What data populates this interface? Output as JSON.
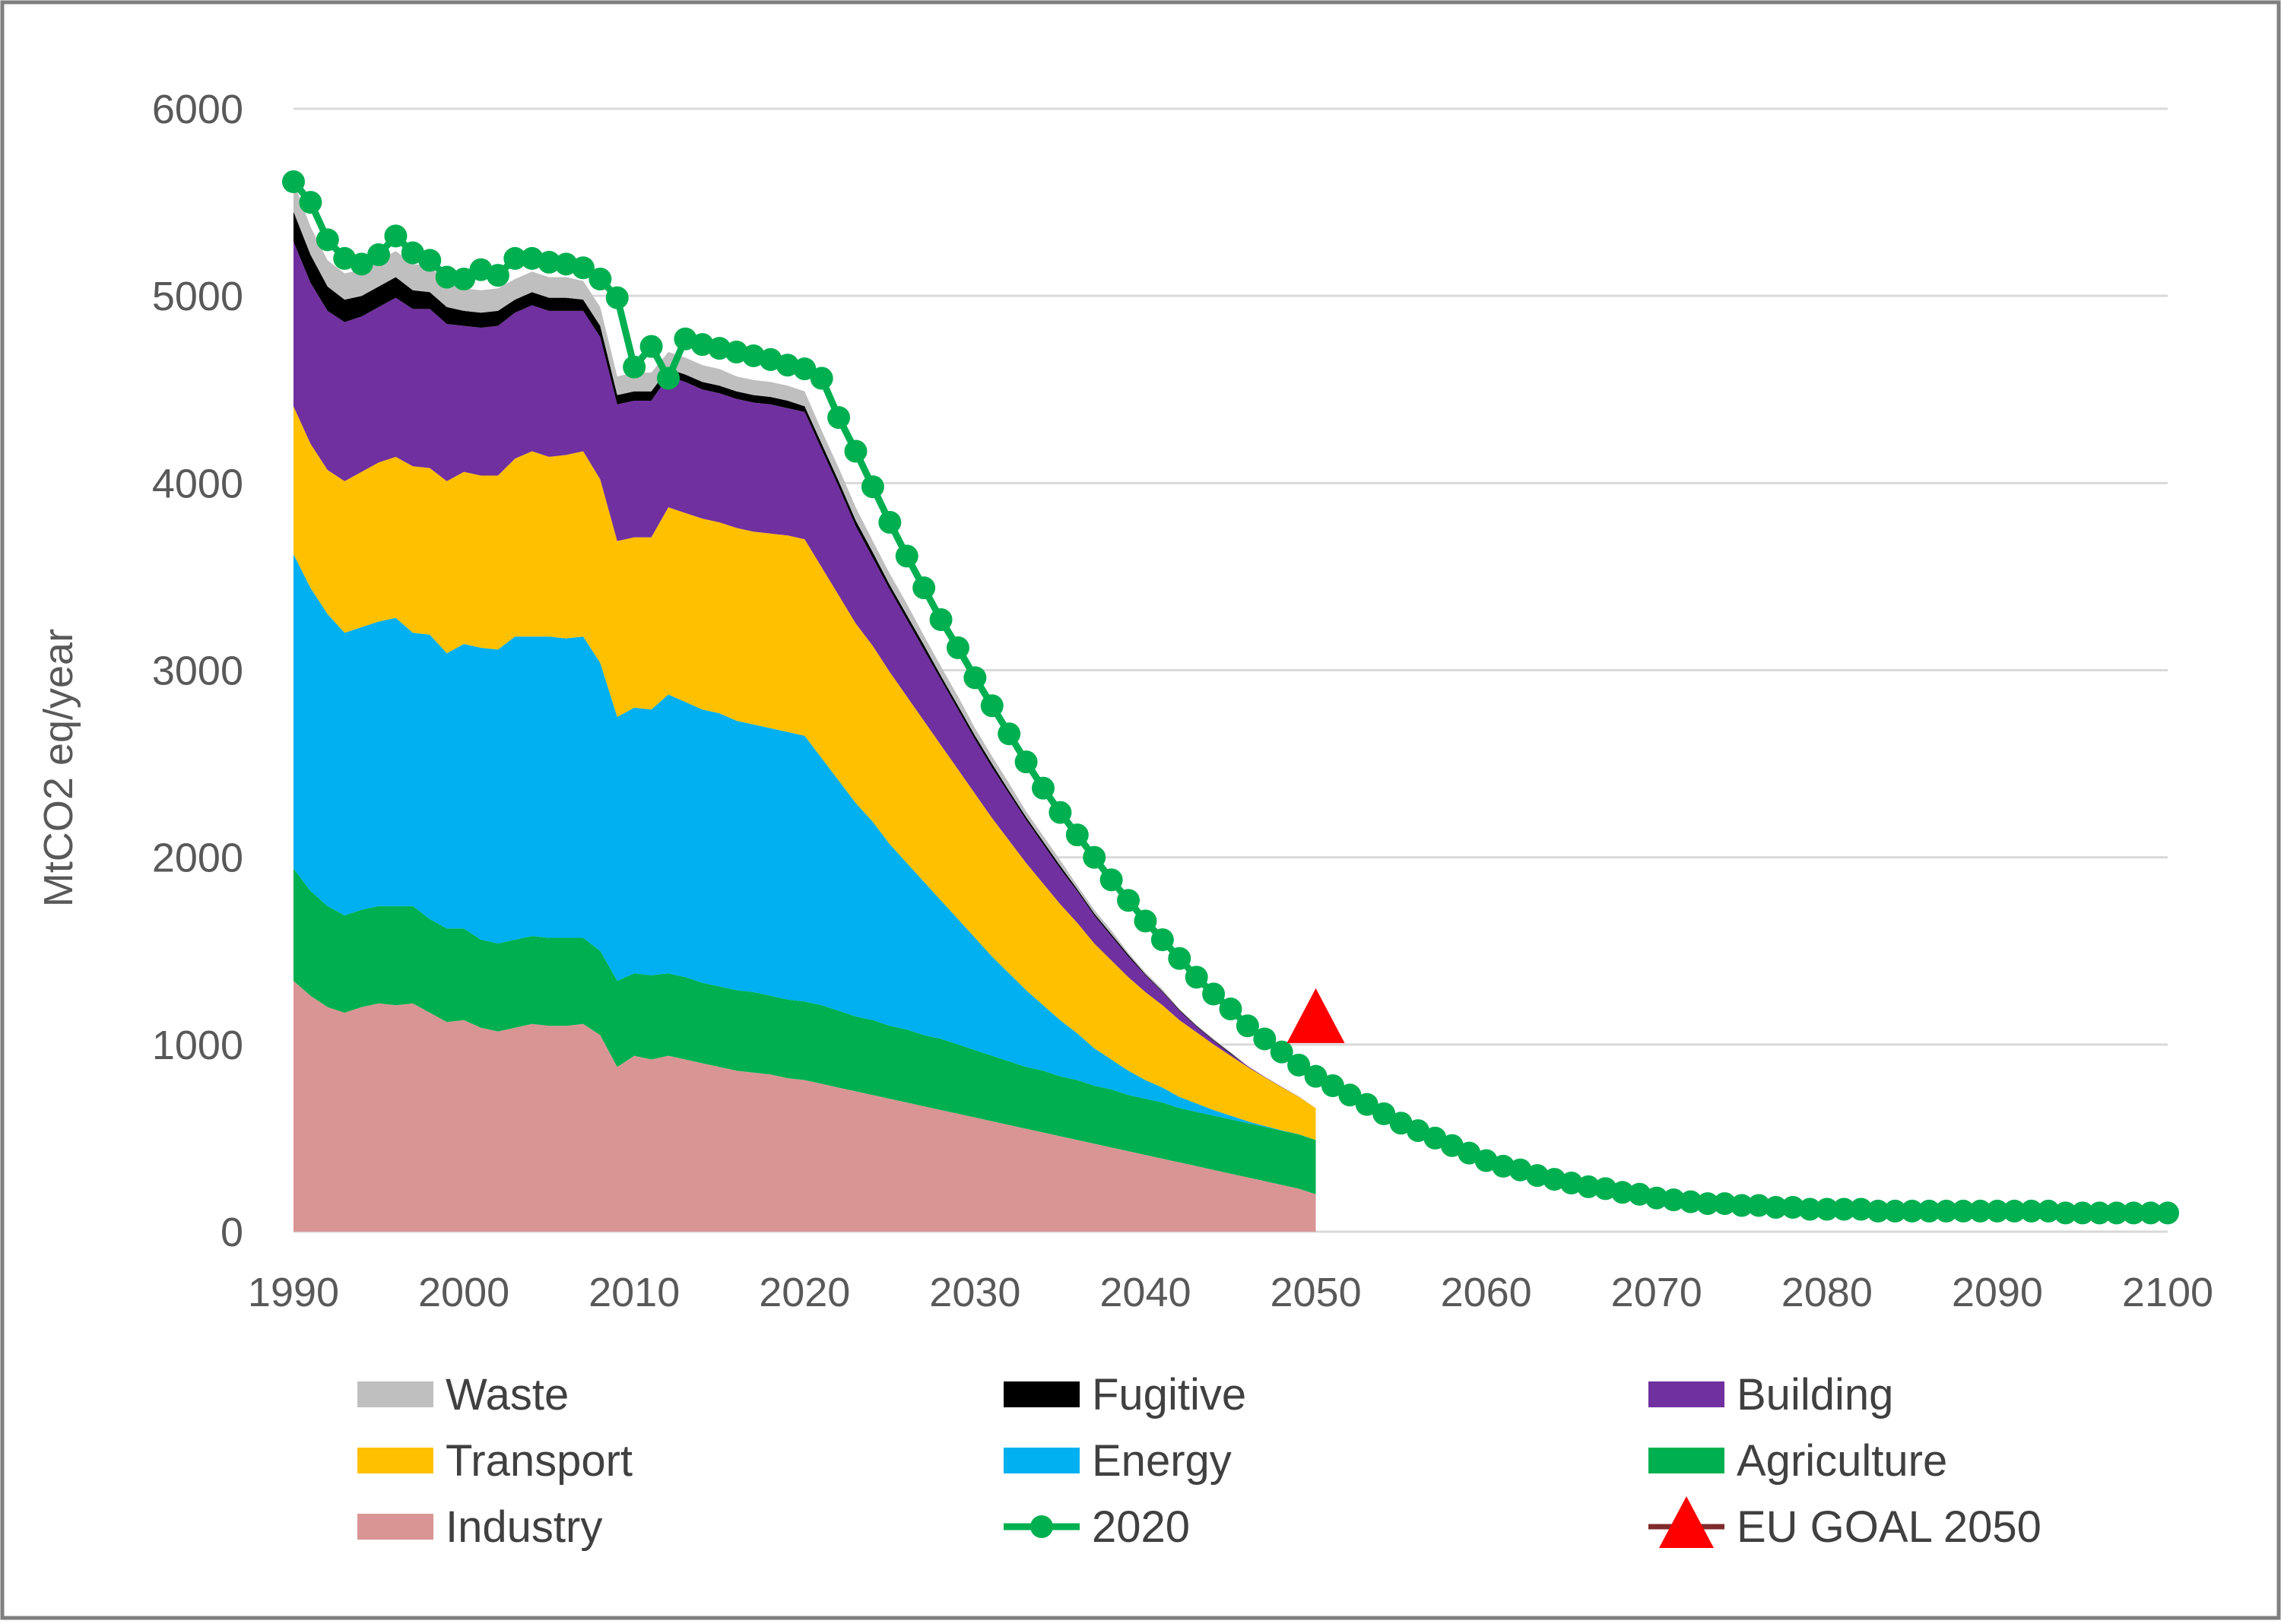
{
  "chart_data": {
    "type": "area",
    "ylabel": "MtCO2 eq/year",
    "xlabel": "",
    "title": "",
    "xlim": [
      1990,
      2100
    ],
    "ylim": [
      0,
      6000
    ],
    "y_ticks": [
      0,
      1000,
      2000,
      3000,
      4000,
      5000,
      6000
    ],
    "x_ticks": [
      1990,
      2000,
      2010,
      2020,
      2030,
      2040,
      2050,
      2060,
      2070,
      2080,
      2090,
      2100
    ],
    "grid": true,
    "legend_position": "bottom",
    "colors": {
      "Industry": "#d99594",
      "Agriculture": "#00b050",
      "Energy": "#00b0f0",
      "Transport": "#ffc000",
      "Building": "#7030a0",
      "Fugitive": "#000000",
      "Waste": "#bfbfbf",
      "2020": "#00b050",
      "EU GOAL 2050": "#ff0000",
      "EU GOAL 2050 line": "#7f2b2b",
      "grid": "#d9d9d9",
      "frame": "#7f7f7f"
    },
    "x": [
      1990,
      1991,
      1992,
      1993,
      1994,
      1995,
      1996,
      1997,
      1998,
      1999,
      2000,
      2001,
      2002,
      2003,
      2004,
      2005,
      2006,
      2007,
      2008,
      2009,
      2010,
      2011,
      2012,
      2013,
      2014,
      2015,
      2016,
      2017,
      2018,
      2019,
      2020,
      2021,
      2022,
      2023,
      2024,
      2025,
      2026,
      2027,
      2028,
      2029,
      2030,
      2031,
      2032,
      2033,
      2034,
      2035,
      2036,
      2037,
      2038,
      2039,
      2040,
      2041,
      2042,
      2043,
      2044,
      2045,
      2046,
      2047,
      2048,
      2049,
      2050
    ],
    "series": [
      {
        "name": "Industry",
        "values": [
          1340,
          1260,
          1200,
          1170,
          1200,
          1220,
          1210,
          1220,
          1170,
          1120,
          1130,
          1090,
          1070,
          1090,
          1110,
          1100,
          1100,
          1110,
          1050,
          880,
          940,
          920,
          940,
          920,
          900,
          880,
          860,
          850,
          840,
          820,
          810,
          790,
          770,
          750,
          730,
          710,
          690,
          670,
          650,
          630,
          610,
          590,
          570,
          550,
          530,
          510,
          490,
          470,
          450,
          430,
          410,
          390,
          370,
          350,
          330,
          310,
          290,
          270,
          250,
          230,
          200
        ]
      },
      {
        "name": "Agriculture",
        "values": [
          600,
          560,
          540,
          520,
          520,
          520,
          530,
          520,
          500,
          500,
          490,
          470,
          470,
          470,
          470,
          470,
          470,
          460,
          450,
          460,
          440,
          450,
          440,
          440,
          430,
          430,
          430,
          430,
          420,
          420,
          420,
          420,
          410,
          400,
          400,
          390,
          390,
          380,
          380,
          370,
          360,
          350,
          340,
          330,
          330,
          320,
          320,
          310,
          310,
          300,
          300,
          300,
          290,
          290,
          290,
          290,
          290,
          290,
          290,
          290,
          290
        ]
      },
      {
        "name": "Energy",
        "values": [
          1680,
          1620,
          1560,
          1510,
          1510,
          1520,
          1540,
          1460,
          1520,
          1470,
          1520,
          1560,
          1570,
          1620,
          1600,
          1610,
          1600,
          1610,
          1540,
          1410,
          1420,
          1420,
          1490,
          1470,
          1460,
          1460,
          1440,
          1430,
          1430,
          1430,
          1420,
          1320,
          1230,
          1140,
          1060,
          970,
          890,
          820,
          740,
          670,
          600,
          530,
          470,
          410,
          350,
          300,
          250,
          200,
          160,
          130,
          100,
          80,
          60,
          45,
          30,
          20,
          10,
          5,
          2,
          1,
          0
        ]
      },
      {
        "name": "Transport",
        "values": [
          790,
          770,
          770,
          810,
          830,
          850,
          860,
          890,
          890,
          920,
          920,
          920,
          930,
          950,
          990,
          960,
          980,
          990,
          980,
          940,
          910,
          920,
          1000,
          1010,
          1020,
          1020,
          1030,
          1030,
          1040,
          1050,
          1050,
          1020,
          990,
          960,
          940,
          920,
          890,
          860,
          830,
          800,
          770,
          740,
          710,
          680,
          650,
          620,
          590,
          560,
          530,
          500,
          470,
          440,
          410,
          380,
          350,
          320,
          290,
          260,
          230,
          200,
          170
        ]
      },
      {
        "name": "Building",
        "values": [
          880,
          860,
          850,
          850,
          830,
          830,
          850,
          840,
          850,
          840,
          780,
          790,
          800,
          780,
          780,
          780,
          770,
          750,
          760,
          730,
          730,
          730,
          700,
          700,
          690,
          690,
          690,
          690,
          690,
          680,
          680,
          630,
          580,
          520,
          470,
          440,
          410,
          380,
          350,
          320,
          290,
          270,
          250,
          230,
          210,
          190,
          170,
          150,
          130,
          110,
          90,
          70,
          50,
          30,
          20,
          10,
          5,
          3,
          2,
          1,
          0
        ]
      },
      {
        "name": "Fugitive",
        "values": [
          160,
          150,
          130,
          120,
          110,
          110,
          110,
          100,
          90,
          90,
          80,
          80,
          80,
          70,
          70,
          70,
          70,
          60,
          60,
          50,
          50,
          50,
          40,
          40,
          40,
          40,
          40,
          40,
          40,
          40,
          30,
          30,
          30,
          30,
          30,
          25,
          25,
          25,
          20,
          20,
          20,
          20,
          15,
          15,
          15,
          15,
          10,
          10,
          10,
          10,
          5,
          5,
          5,
          5,
          5,
          5,
          0,
          0,
          0,
          0,
          0
        ]
      },
      {
        "name": "Waste",
        "values": [
          160,
          150,
          140,
          140,
          140,
          140,
          140,
          140,
          140,
          130,
          120,
          120,
          120,
          110,
          110,
          110,
          110,
          100,
          100,
          100,
          100,
          100,
          90,
          90,
          90,
          90,
          80,
          80,
          80,
          80,
          80,
          70,
          70,
          70,
          60,
          60,
          60,
          50,
          50,
          50,
          40,
          40,
          40,
          30,
          30,
          30,
          20,
          20,
          20,
          10,
          10,
          10,
          5,
          5,
          5,
          5,
          0,
          0,
          0,
          0,
          0
        ]
      }
    ],
    "line_series": {
      "name": "2020",
      "x": [
        1990,
        1991,
        1992,
        1993,
        1994,
        1995,
        1996,
        1997,
        1998,
        1999,
        2000,
        2001,
        2002,
        2003,
        2004,
        2005,
        2006,
        2007,
        2008,
        2009,
        2010,
        2011,
        2012,
        2013,
        2014,
        2015,
        2016,
        2017,
        2018,
        2019,
        2020,
        2021,
        2022,
        2023,
        2024,
        2025,
        2026,
        2027,
        2028,
        2029,
        2030,
        2031,
        2032,
        2033,
        2034,
        2035,
        2036,
        2037,
        2038,
        2039,
        2040,
        2041,
        2042,
        2043,
        2044,
        2045,
        2046,
        2047,
        2048,
        2049,
        2050,
        2051,
        2052,
        2053,
        2054,
        2055,
        2056,
        2057,
        2058,
        2059,
        2060,
        2061,
        2062,
        2063,
        2064,
        2065,
        2066,
        2067,
        2068,
        2069,
        2070,
        2071,
        2072,
        2073,
        2074,
        2075,
        2076,
        2077,
        2078,
        2079,
        2080,
        2081,
        2082,
        2083,
        2084,
        2085,
        2086,
        2087,
        2088,
        2089,
        2090,
        2091,
        2092,
        2093,
        2094,
        2095,
        2096,
        2097,
        2098,
        2099,
        2100
      ],
      "values": [
        5610,
        5500,
        5300,
        5200,
        5170,
        5220,
        5320,
        5230,
        5190,
        5100,
        5090,
        5140,
        5110,
        5200,
        5200,
        5180,
        5170,
        5150,
        5090,
        4990,
        4620,
        4730,
        4560,
        4770,
        4740,
        4720,
        4700,
        4680,
        4660,
        4630,
        4610,
        4560,
        4350,
        4170,
        3980,
        3790,
        3610,
        3440,
        3270,
        3120,
        2960,
        2810,
        2660,
        2510,
        2370,
        2240,
        2120,
        2000,
        1880,
        1770,
        1660,
        1560,
        1460,
        1360,
        1270,
        1190,
        1100,
        1030,
        960,
        890,
        830,
        780,
        730,
        680,
        630,
        580,
        540,
        500,
        460,
        420,
        380,
        350,
        330,
        300,
        280,
        260,
        240,
        230,
        210,
        200,
        180,
        170,
        160,
        150,
        150,
        140,
        140,
        130,
        130,
        120,
        120,
        120,
        120,
        110,
        110,
        110,
        110,
        110,
        110,
        110,
        110,
        110,
        110,
        110,
        100,
        100,
        100,
        100,
        100,
        100,
        100
      ]
    },
    "goal": {
      "name": "EU GOAL 2050",
      "x": 2050,
      "y": 1130
    }
  },
  "legend": {
    "items": [
      {
        "label": "Waste",
        "kind": "area",
        "color": "#bfbfbf"
      },
      {
        "label": "Fugitive",
        "kind": "area",
        "color": "#000000"
      },
      {
        "label": "Building",
        "kind": "area",
        "color": "#7030a0"
      },
      {
        "label": "Transport",
        "kind": "area",
        "color": "#ffc000"
      },
      {
        "label": "Energy",
        "kind": "area",
        "color": "#00b0f0"
      },
      {
        "label": "Agriculture",
        "kind": "area",
        "color": "#00b050"
      },
      {
        "label": "Industry",
        "kind": "area",
        "color": "#d99594"
      },
      {
        "label": "2020",
        "kind": "line-marker",
        "color": "#00b050"
      },
      {
        "label": "EU GOAL 2050",
        "kind": "triangle",
        "color": "#ff0000"
      }
    ]
  }
}
